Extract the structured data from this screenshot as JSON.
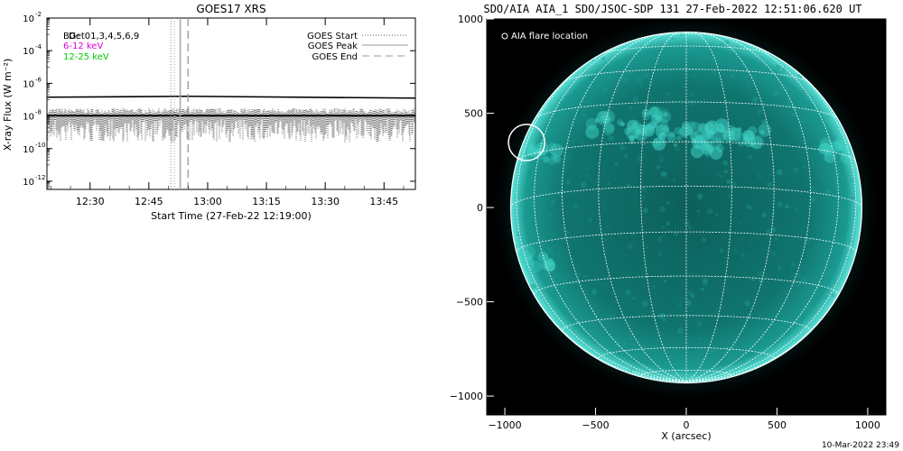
{
  "chart_data": [
    {
      "type": "line",
      "title": "GOES17 XRS",
      "xlabel": "Start Time (27-Feb-22 12:19:00)",
      "ylabel": "X-ray Flux (W m⁻²)",
      "x_ticks": [
        "12:30",
        "12:45",
        "13:00",
        "13:15",
        "13:30",
        "13:45"
      ],
      "y_ticks": [
        {
          "mantissa": "10",
          "exp": "-2"
        },
        {
          "mantissa": "10",
          "exp": "-4"
        },
        {
          "mantissa": "10",
          "exp": "-6"
        },
        {
          "mantissa": "10",
          "exp": "-8"
        },
        {
          "mantissa": "10",
          "exp": "-10"
        },
        {
          "mantissa": "10",
          "exp": "-12"
        }
      ],
      "y_scale": "log",
      "ylim_exp": [
        -12.5,
        -2
      ],
      "legend_left": [
        {
          "text": "BG:",
          "color": "#000000"
        },
        {
          "text": "Det01,3,4,5,6,9",
          "color": "#000000"
        },
        {
          "text": "6-12 keV",
          "color": "#dd00dd"
        },
        {
          "text": "12-25 keV",
          "color": "#00cc00"
        }
      ],
      "legend_right": [
        {
          "label": "GOES Start",
          "style": "dotted"
        },
        {
          "label": "GOES Peak",
          "style": "solid"
        },
        {
          "label": "GOES End",
          "style": "dashed"
        }
      ],
      "series": [
        {
          "level_exp": -6.85,
          "noise": "low",
          "color": "#000000"
        },
        {
          "level_exp": -8.2,
          "noise": "high",
          "color": "#000000"
        }
      ],
      "markers": {
        "goes_start": "12:52:00",
        "goes_peak": "12:53:00",
        "goes_end": "12:55:00"
      }
    },
    {
      "type": "image",
      "title": "SDO/AIA AIA_1 SDO/JSOC-SDP 131 27-Feb-2022 12:51:06.620 UT",
      "xlabel": "X (arcsec)",
      "ylabel": "",
      "x_ticks": [
        "−1000",
        "−500",
        "0",
        "500",
        "1000"
      ],
      "y_ticks": [
        "1000",
        "500",
        "0",
        "−500",
        "−1000"
      ],
      "xlim": [
        -1100,
        1100
      ],
      "ylim": [
        -1100,
        1000
      ],
      "legend_text": "AIA flare location",
      "flare_location": {
        "x": -880,
        "y": 345
      },
      "disk_color": "#0f6f6a",
      "limb_color": "#5fe6dc",
      "footer_stamp": "10-Mar-2022 23:49"
    }
  ]
}
